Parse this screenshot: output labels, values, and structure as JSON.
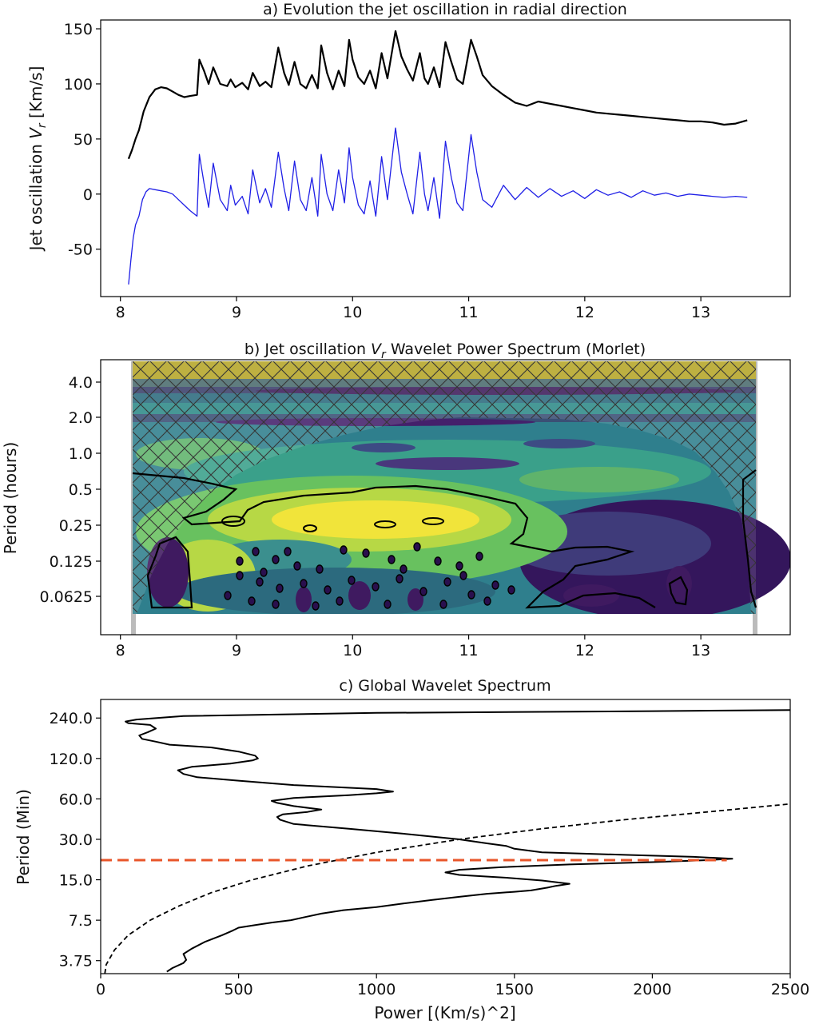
{
  "chart_data": [
    {
      "type": "line",
      "title": "a) Evolution the jet oscillation in radial direction",
      "ylabel_main": "Jet oscillation ",
      "ylabel_symbol": "V",
      "ylabel_subscript": "r",
      "ylabel_unit": " [Km/s]",
      "xlabel": "",
      "xlim": [
        7.83,
        13.77
      ],
      "ylim": [
        -93,
        158
      ],
      "xticks": [
        8,
        9,
        10,
        11,
        12,
        13
      ],
      "yticks": [
        -50,
        0,
        50,
        100,
        150
      ],
      "series": [
        {
          "color": "#000000",
          "x": [
            8.07,
            8.1,
            8.13,
            8.16,
            8.2,
            8.25,
            8.3,
            8.35,
            8.4,
            8.45,
            8.5,
            8.55,
            8.6,
            8.66,
            8.68,
            8.72,
            8.76,
            8.8,
            8.86,
            8.92,
            8.95,
            8.99,
            9.05,
            9.1,
            9.14,
            9.2,
            9.25,
            9.3,
            9.36,
            9.41,
            9.45,
            9.5,
            9.55,
            9.6,
            9.65,
            9.7,
            9.73,
            9.78,
            9.83,
            9.88,
            9.93,
            9.97,
            10.0,
            10.05,
            10.1,
            10.15,
            10.2,
            10.25,
            10.3,
            10.37,
            10.42,
            10.47,
            10.52,
            10.58,
            10.62,
            10.65,
            10.7,
            10.75,
            10.8,
            10.85,
            10.9,
            10.95,
            11.02,
            11.07,
            11.12,
            11.2,
            11.3,
            11.4,
            11.5,
            11.6,
            11.7,
            11.8,
            11.9,
            12.0,
            12.1,
            12.2,
            12.3,
            12.4,
            12.5,
            12.6,
            12.7,
            12.8,
            12.9,
            13.0,
            13.1,
            13.2,
            13.3,
            13.4
          ],
          "y": [
            32,
            40,
            50,
            58,
            75,
            88,
            95,
            97,
            96,
            93,
            90,
            88,
            89,
            90,
            122,
            112,
            100,
            115,
            100,
            98,
            104,
            97,
            101,
            95,
            110,
            98,
            102,
            97,
            133,
            110,
            99,
            120,
            100,
            96,
            108,
            96,
            135,
            110,
            95,
            112,
            98,
            140,
            122,
            106,
            100,
            112,
            96,
            128,
            105,
            148,
            125,
            113,
            103,
            128,
            105,
            100,
            115,
            97,
            138,
            120,
            104,
            100,
            140,
            125,
            108,
            98,
            90,
            83,
            80,
            84,
            82,
            80,
            78,
            76,
            74,
            73,
            72,
            71,
            70,
            69,
            68,
            67,
            66,
            66,
            65,
            63,
            64,
            67
          ]
        },
        {
          "color": "#1f1fe6",
          "x": [
            8.07,
            8.09,
            8.11,
            8.13,
            8.16,
            8.19,
            8.22,
            8.25,
            8.3,
            8.35,
            8.4,
            8.45,
            8.5,
            8.55,
            8.6,
            8.66,
            8.68,
            8.72,
            8.76,
            8.8,
            8.86,
            8.92,
            8.95,
            8.99,
            9.05,
            9.1,
            9.14,
            9.2,
            9.25,
            9.3,
            9.36,
            9.41,
            9.45,
            9.5,
            9.55,
            9.6,
            9.65,
            9.7,
            9.73,
            9.78,
            9.83,
            9.88,
            9.93,
            9.97,
            10.0,
            10.05,
            10.1,
            10.15,
            10.2,
            10.25,
            10.3,
            10.37,
            10.42,
            10.47,
            10.52,
            10.58,
            10.62,
            10.65,
            10.7,
            10.75,
            10.8,
            10.85,
            10.9,
            10.95,
            11.02,
            11.07,
            11.12,
            11.2,
            11.3,
            11.4,
            11.5,
            11.6,
            11.7,
            11.8,
            11.9,
            12.0,
            12.1,
            12.2,
            12.3,
            12.4,
            12.5,
            12.6,
            12.7,
            12.8,
            12.9,
            13.0,
            13.1,
            13.2,
            13.3,
            13.4
          ],
          "y": [
            -82,
            -60,
            -40,
            -28,
            -20,
            -5,
            2,
            5,
            4,
            3,
            2,
            0,
            -5,
            -10,
            -15,
            -20,
            36,
            10,
            -12,
            28,
            -5,
            -15,
            8,
            -10,
            -2,
            -18,
            22,
            -8,
            5,
            -12,
            38,
            5,
            -15,
            30,
            -5,
            -15,
            15,
            -20,
            36,
            0,
            -15,
            22,
            -8,
            42,
            15,
            -10,
            -18,
            12,
            -20,
            34,
            -5,
            60,
            20,
            0,
            -18,
            38,
            0,
            -15,
            15,
            -22,
            48,
            15,
            -8,
            -15,
            54,
            20,
            -5,
            -12,
            8,
            -5,
            6,
            -3,
            5,
            -2,
            3,
            -4,
            4,
            -1,
            2,
            -3,
            3,
            -1,
            1,
            -2,
            0,
            -1,
            -2,
            -3,
            -2,
            -3
          ]
        }
      ]
    },
    {
      "type": "heatmap",
      "title_prefix": "b) Jet oscillation ",
      "title_symbol": "V",
      "title_subscript": "r",
      "title_suffix": " Wavelet Power Spectrum (Morlet)",
      "ylabel": "Period (hours)",
      "xlim": [
        7.83,
        13.77
      ],
      "xticks": [
        8,
        9,
        10,
        11,
        12,
        13
      ],
      "ytick_labels": [
        "4.0",
        "2.0",
        "1.0",
        "0.5",
        "0.25",
        "0.125",
        "0.0625"
      ],
      "colormap": "viridis"
    },
    {
      "type": "line",
      "title": "c) Global Wavelet Spectrum",
      "xlabel": "Power [(Km/s)^2]",
      "ylabel": "Period (Min)",
      "xlim": [
        0,
        2500
      ],
      "xticks": [
        0,
        500,
        1000,
        1500,
        2000,
        2500
      ],
      "yscale": "log2",
      "ylim": [
        3.0,
        330
      ],
      "ytick_values": [
        3.75,
        7.5,
        15.0,
        30.0,
        60.0,
        120.0,
        240.0
      ],
      "ytick_labels": [
        "3.75",
        "7.5",
        "15.0",
        "30.0",
        "60.0",
        "120.0",
        "240.0"
      ],
      "series": [
        {
          "style": "solid",
          "color": "#000000",
          "x": [
            240,
            260,
            300,
            310,
            300,
            330,
            380,
            440,
            480,
            500,
            560,
            620,
            690,
            740,
            800,
            880,
            1000,
            1100,
            1200,
            1300,
            1400,
            1500,
            1560,
            1590,
            1620,
            1650,
            1700,
            1600,
            1480,
            1300,
            1250,
            1300,
            1450,
            1700,
            2000,
            2200,
            2290,
            2150,
            1900,
            1600,
            1500,
            1470,
            1400,
            1300,
            1100,
            900,
            700,
            650,
            640,
            660,
            750,
            800,
            700,
            640,
            620,
            700,
            900,
            1000,
            1060,
            1000,
            700,
            500,
            350,
            300,
            280,
            330,
            470,
            550,
            570,
            560,
            500,
            400,
            250,
            200,
            150,
            140,
            170,
            200,
            180,
            100,
            90,
            130,
            300,
            1000,
            2000,
            2500
          ],
          "y": [
            3.1,
            3.3,
            3.6,
            3.8,
            4.2,
            4.6,
            5.2,
            5.8,
            6.3,
            6.6,
            6.9,
            7.2,
            7.5,
            7.9,
            8.4,
            8.9,
            9.4,
            10.0,
            10.6,
            11.2,
            11.8,
            12.2,
            12.5,
            12.8,
            13.1,
            13.5,
            14.0,
            14.8,
            15.5,
            16.3,
            17.0,
            17.8,
            18.6,
            19.5,
            20.3,
            21.0,
            21.5,
            22.2,
            23.0,
            24.0,
            25.5,
            26.8,
            28.0,
            30.0,
            33.0,
            36.0,
            39.0,
            42.0,
            44.0,
            46.0,
            48.0,
            50.0,
            53.0,
            56.0,
            58.0,
            61.0,
            64.0,
            66.0,
            68.0,
            71.0,
            76.0,
            82.0,
            87.0,
            92.0,
            98.0,
            104.0,
            110.0,
            116.0,
            120.0,
            126.0,
            135.0,
            145.0,
            152.0,
            160.0,
            168.0,
            178.0,
            188.0,
            200.0,
            213.0,
            220.0,
            226.0,
            234.0,
            248.0,
            262.0,
            270.0,
            275.0
          ]
        },
        {
          "style": "dashed",
          "color": "#000000",
          "x": [
            15,
            20,
            50,
            100,
            180,
            280,
            400,
            550,
            750,
            1000,
            1300,
            1600,
            1900,
            2200,
            2500
          ],
          "y": [
            3.0,
            3.5,
            4.5,
            5.8,
            7.5,
            9.5,
            12,
            15,
            19,
            24,
            30,
            36,
            42,
            48,
            55
          ]
        },
        {
          "style": "dashed",
          "color": "#e8562a",
          "x": [
            0,
            2270
          ],
          "y": [
            21.0,
            21.0
          ]
        }
      ]
    }
  ]
}
